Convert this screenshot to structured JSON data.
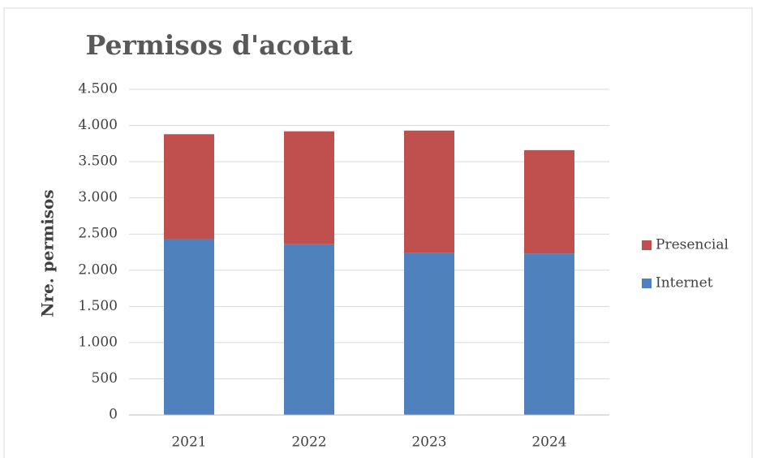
{
  "chart_data": {
    "type": "stacked_bar",
    "title": "Permisos d'acotat",
    "y_label": "Nre. permisos",
    "categories": [
      "2021",
      "2022",
      "2023",
      "2024"
    ],
    "series": [
      {
        "name": "Internet",
        "color": "#4f81bd",
        "values": [
          2430,
          2360,
          2240,
          2230
        ]
      },
      {
        "name": "Presencial",
        "color": "#c0504d",
        "values": [
          1450,
          1560,
          1690,
          1430
        ]
      }
    ],
    "ylim": [
      0,
      4500
    ],
    "yticks": [
      0,
      500,
      {
        "value": 1000,
        "label": "1.000"
      },
      {
        "value": 1500,
        "label": "1.500"
      },
      {
        "value": 2000,
        "label": "2.000"
      },
      {
        "value": 2500,
        "label": "2.500"
      },
      {
        "value": 3000,
        "label": "3.000"
      },
      {
        "value": 3500,
        "label": "3.500"
      },
      {
        "value": 4000,
        "label": "4.000"
      },
      {
        "value": 4500,
        "label": "4.500"
      }
    ],
    "grid": true,
    "legend": "right"
  }
}
